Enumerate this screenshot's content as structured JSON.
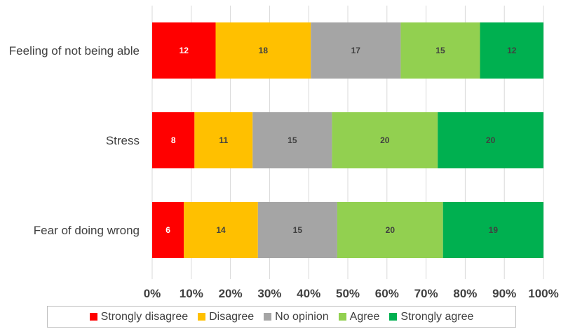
{
  "chart_data": {
    "type": "bar",
    "orientation": "horizontal",
    "stacked": "percent",
    "categories": [
      "Feeling of not being able",
      "Stress",
      "Fear of doing wrong"
    ],
    "series": [
      {
        "name": "Strongly disagree",
        "color": "#ff0000",
        "label_color": "#ffffff",
        "values": [
          12,
          8,
          6
        ]
      },
      {
        "name": "Disagree",
        "color": "#ffc000",
        "label_color": "#404040",
        "values": [
          18,
          11,
          14
        ]
      },
      {
        "name": "No opinion",
        "color": "#a5a5a5",
        "label_color": "#404040",
        "values": [
          17,
          15,
          15
        ]
      },
      {
        "name": "Agree",
        "color": "#92d050",
        "label_color": "#404040",
        "values": [
          15,
          20,
          20
        ]
      },
      {
        "name": "Strongly agree",
        "color": "#00b050",
        "label_color": "#404040",
        "values": [
          12,
          20,
          19
        ]
      }
    ],
    "x_ticks": [
      "0%",
      "10%",
      "20%",
      "30%",
      "40%",
      "50%",
      "60%",
      "70%",
      "80%",
      "90%",
      "100%"
    ],
    "xlim": [
      0,
      100
    ],
    "grid": "vertical",
    "legend_position": "bottom"
  }
}
